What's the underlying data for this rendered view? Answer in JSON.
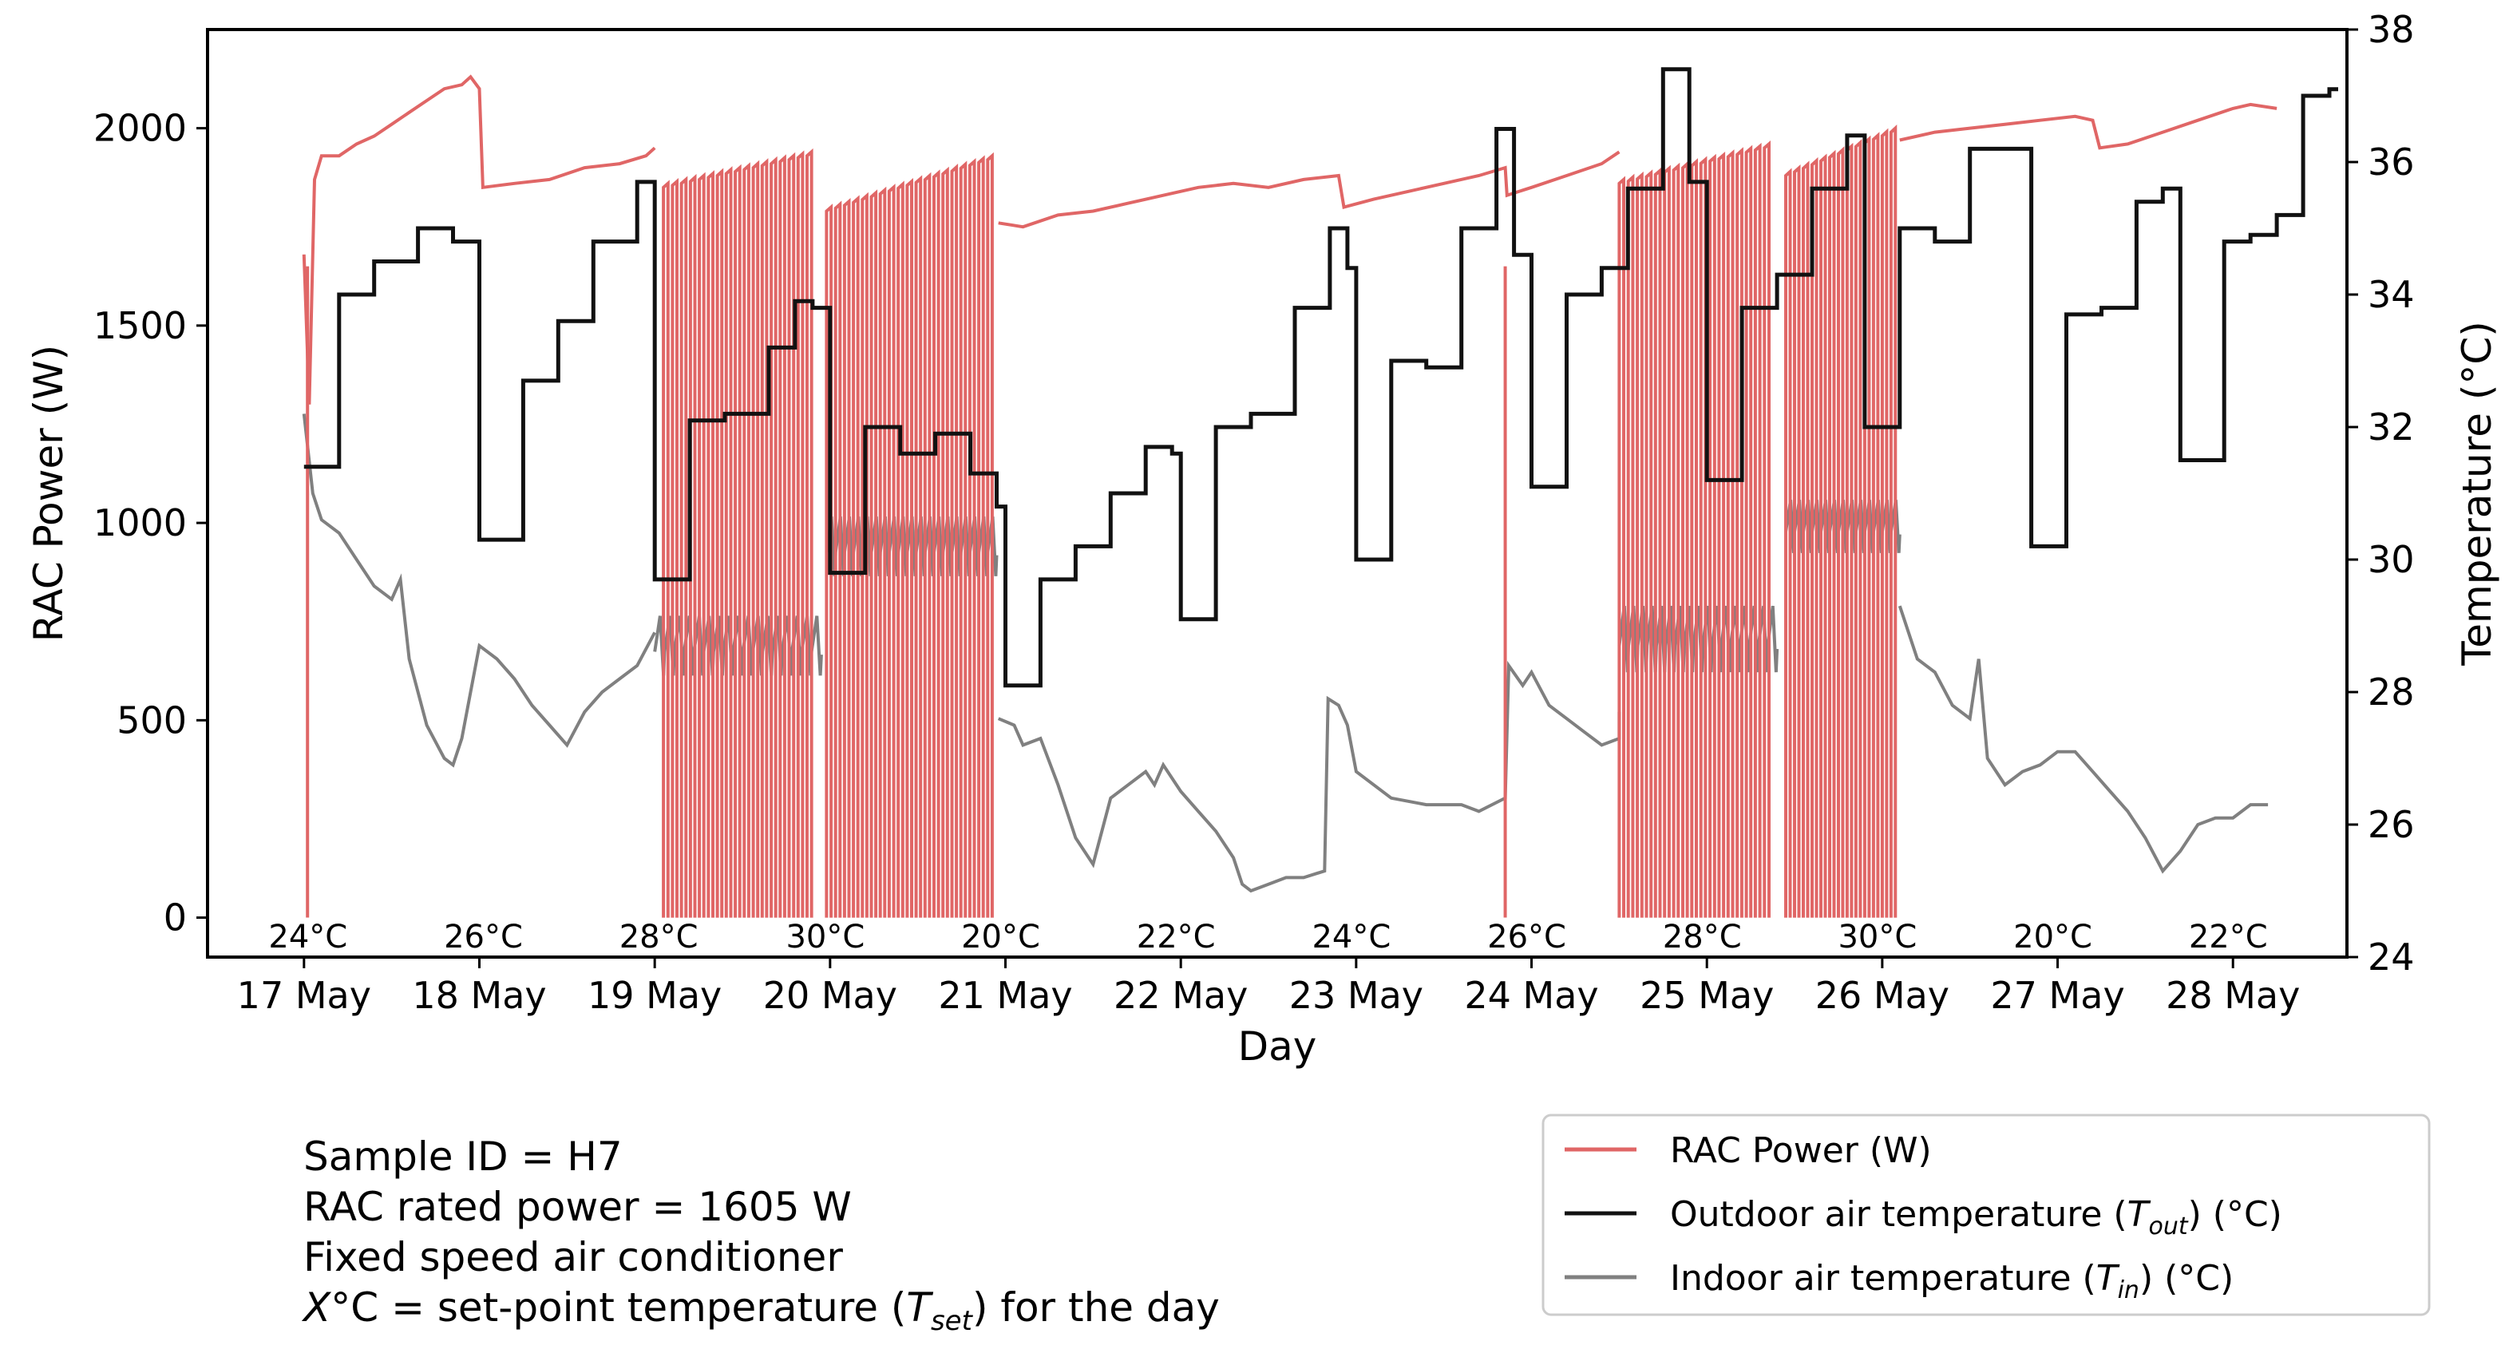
{
  "chart_data": {
    "type": "line",
    "xlabel": "Day",
    "ylabel_left": "RAC Power (W)",
    "ylabel_right": "Temperature (°C)",
    "ylim_left": [
      -100,
      2250
    ],
    "ylim_right": [
      24,
      38
    ],
    "xlim": [
      16.45,
      28.65
    ],
    "x_ticks": [
      {
        "value": 17,
        "label": "17 May"
      },
      {
        "value": 18,
        "label": "18 May"
      },
      {
        "value": 19,
        "label": "19 May"
      },
      {
        "value": 20,
        "label": "20 May"
      },
      {
        "value": 21,
        "label": "21 May"
      },
      {
        "value": 22,
        "label": "22 May"
      },
      {
        "value": 23,
        "label": "23 May"
      },
      {
        "value": 24,
        "label": "24 May"
      },
      {
        "value": 25,
        "label": "25 May"
      },
      {
        "value": 26,
        "label": "26 May"
      },
      {
        "value": 27,
        "label": "27 May"
      },
      {
        "value": 28,
        "label": "28 May"
      }
    ],
    "y_ticks_left": [
      0,
      500,
      1000,
      1500,
      2000
    ],
    "y_ticks_right": [
      24,
      26,
      28,
      30,
      32,
      34,
      36,
      38
    ],
    "setpoints": [
      {
        "x": 17.0,
        "label": "24°C"
      },
      {
        "x": 18.0,
        "label": "26°C"
      },
      {
        "x": 19.0,
        "label": "28°C"
      },
      {
        "x": 19.95,
        "label": "30°C"
      },
      {
        "x": 20.95,
        "label": "20°C"
      },
      {
        "x": 21.95,
        "label": "22°C"
      },
      {
        "x": 22.95,
        "label": "24°C"
      },
      {
        "x": 23.95,
        "label": "26°C"
      },
      {
        "x": 24.95,
        "label": "28°C"
      },
      {
        "x": 25.95,
        "label": "30°C"
      },
      {
        "x": 26.95,
        "label": "20°C"
      },
      {
        "x": 27.95,
        "label": "22°C"
      }
    ],
    "series": [
      {
        "name": "RAC Power (W)",
        "axis": "left",
        "color": "#e06666",
        "continuous": [
          [
            17.0,
            1680
          ],
          [
            17.03,
            1300
          ],
          [
            17.06,
            1870
          ],
          [
            17.1,
            1930
          ],
          [
            17.2,
            1930
          ],
          [
            17.3,
            1960
          ],
          [
            17.4,
            1980
          ],
          [
            17.5,
            2010
          ],
          [
            17.6,
            2040
          ],
          [
            17.7,
            2070
          ],
          [
            17.8,
            2100
          ],
          [
            17.9,
            2110
          ],
          [
            17.95,
            2130
          ],
          [
            18.0,
            2100
          ],
          [
            18.02,
            1850
          ],
          [
            18.2,
            1860
          ],
          [
            18.4,
            1870
          ],
          [
            18.6,
            1900
          ],
          [
            18.8,
            1910
          ],
          [
            18.95,
            1930
          ],
          [
            19.0,
            1950
          ],
          [
            20.96,
            1760
          ],
          [
            21.1,
            1750
          ],
          [
            21.3,
            1780
          ],
          [
            21.5,
            1790
          ],
          [
            21.7,
            1810
          ],
          [
            21.9,
            1830
          ],
          [
            22.1,
            1850
          ],
          [
            22.3,
            1860
          ],
          [
            22.5,
            1850
          ],
          [
            22.7,
            1870
          ],
          [
            22.9,
            1880
          ],
          [
            22.93,
            1800
          ],
          [
            23.1,
            1820
          ],
          [
            23.3,
            1840
          ],
          [
            23.5,
            1860
          ],
          [
            23.7,
            1880
          ],
          [
            23.85,
            1900
          ],
          [
            23.86,
            1830
          ],
          [
            24.0,
            1850
          ],
          [
            24.2,
            1880
          ],
          [
            24.4,
            1910
          ],
          [
            24.5,
            1940
          ],
          [
            26.1,
            1970
          ],
          [
            26.3,
            1990
          ],
          [
            26.5,
            2000
          ],
          [
            26.7,
            2010
          ],
          [
            26.9,
            2020
          ],
          [
            27.1,
            2030
          ],
          [
            27.2,
            2020
          ],
          [
            27.24,
            1950
          ],
          [
            27.4,
            1960
          ],
          [
            27.6,
            1990
          ],
          [
            27.8,
            2020
          ],
          [
            28.0,
            2050
          ],
          [
            28.1,
            2060
          ],
          [
            28.25,
            2050
          ]
        ],
        "cycling_blocks": [
          {
            "start": 19.05,
            "end": 19.92,
            "peak_start": 1850,
            "peak_end": 1930,
            "count": 17
          },
          {
            "start": 19.98,
            "end": 20.95,
            "peak_start": 1790,
            "peak_end": 1920,
            "count": 19
          },
          {
            "start": 24.5,
            "end": 25.38,
            "peak_start": 1860,
            "peak_end": 1950,
            "count": 17
          },
          {
            "start": 25.45,
            "end": 26.1,
            "peak_start": 1880,
            "peak_end": 1990,
            "count": 13
          }
        ],
        "drop_spikes": [
          17.02,
          23.85
        ]
      },
      {
        "name": "Outdoor air temperature (T_out) (°C)",
        "axis": "right",
        "color": "#111111",
        "steps": [
          [
            17.0,
            31.4
          ],
          [
            17.2,
            34.0
          ],
          [
            17.4,
            34.5
          ],
          [
            17.65,
            35.0
          ],
          [
            17.85,
            34.8
          ],
          [
            18.0,
            30.3
          ],
          [
            18.25,
            32.7
          ],
          [
            18.45,
            33.6
          ],
          [
            18.65,
            34.8
          ],
          [
            18.9,
            35.7
          ],
          [
            19.0,
            29.7
          ],
          [
            19.2,
            32.1
          ],
          [
            19.4,
            32.2
          ],
          [
            19.65,
            33.2
          ],
          [
            19.8,
            33.9
          ],
          [
            19.9,
            33.8
          ],
          [
            20.0,
            29.8
          ],
          [
            20.2,
            32.0
          ],
          [
            20.4,
            31.6
          ],
          [
            20.6,
            31.9
          ],
          [
            20.8,
            31.3
          ],
          [
            20.95,
            30.8
          ],
          [
            21.0,
            28.1
          ],
          [
            21.2,
            29.7
          ],
          [
            21.4,
            30.2
          ],
          [
            21.6,
            31.0
          ],
          [
            21.8,
            31.7
          ],
          [
            21.95,
            31.6
          ],
          [
            22.0,
            29.1
          ],
          [
            22.2,
            32.0
          ],
          [
            22.4,
            32.2
          ],
          [
            22.65,
            33.8
          ],
          [
            22.85,
            35.0
          ],
          [
            22.95,
            34.4
          ],
          [
            23.0,
            30.0
          ],
          [
            23.2,
            33.0
          ],
          [
            23.4,
            32.9
          ],
          [
            23.6,
            35.0
          ],
          [
            23.8,
            36.5
          ],
          [
            23.9,
            34.6
          ],
          [
            24.0,
            31.1
          ],
          [
            24.2,
            34.0
          ],
          [
            24.4,
            34.4
          ],
          [
            24.55,
            35.6
          ],
          [
            24.75,
            37.4
          ],
          [
            24.9,
            35.7
          ],
          [
            25.0,
            31.2
          ],
          [
            25.2,
            33.8
          ],
          [
            25.4,
            34.3
          ],
          [
            25.6,
            35.6
          ],
          [
            25.8,
            36.4
          ],
          [
            25.9,
            32.0
          ],
          [
            26.1,
            35.0
          ],
          [
            26.3,
            34.8
          ],
          [
            26.5,
            36.2
          ],
          [
            26.7,
            36.2
          ],
          [
            26.85,
            30.2
          ],
          [
            27.05,
            33.7
          ],
          [
            27.25,
            33.8
          ],
          [
            27.45,
            35.4
          ],
          [
            27.6,
            35.6
          ],
          [
            27.7,
            31.5
          ],
          [
            27.95,
            34.8
          ],
          [
            28.1,
            34.9
          ],
          [
            28.25,
            35.2
          ],
          [
            28.4,
            37.0
          ],
          [
            28.55,
            37.1
          ]
        ],
        "x_end": 28.6
      },
      {
        "name": "Indoor air temperature (T_in) (°C)",
        "axis": "right",
        "color": "#808080",
        "continuous": [
          [
            17.0,
            32.2
          ],
          [
            17.05,
            31.0
          ],
          [
            17.1,
            30.6
          ],
          [
            17.2,
            30.4
          ],
          [
            17.3,
            30.0
          ],
          [
            17.4,
            29.6
          ],
          [
            17.5,
            29.4
          ],
          [
            17.55,
            29.7
          ],
          [
            17.6,
            28.5
          ],
          [
            17.65,
            28.0
          ],
          [
            17.7,
            27.5
          ],
          [
            17.8,
            27.0
          ],
          [
            17.85,
            26.9
          ],
          [
            17.9,
            27.3
          ],
          [
            18.0,
            28.7
          ],
          [
            18.1,
            28.5
          ],
          [
            18.2,
            28.2
          ],
          [
            18.3,
            27.8
          ],
          [
            18.4,
            27.5
          ],
          [
            18.5,
            27.2
          ],
          [
            18.6,
            27.7
          ],
          [
            18.7,
            28.0
          ],
          [
            18.8,
            28.2
          ],
          [
            18.9,
            28.4
          ],
          [
            19.0,
            28.9
          ],
          [
            20.96,
            27.6
          ],
          [
            21.05,
            27.5
          ],
          [
            21.1,
            27.2
          ],
          [
            21.2,
            27.3
          ],
          [
            21.3,
            26.6
          ],
          [
            21.4,
            25.8
          ],
          [
            21.5,
            25.4
          ],
          [
            21.55,
            25.9
          ],
          [
            21.6,
            26.4
          ],
          [
            21.7,
            26.6
          ],
          [
            21.8,
            26.8
          ],
          [
            21.85,
            26.6
          ],
          [
            21.9,
            26.9
          ],
          [
            22.0,
            26.5
          ],
          [
            22.1,
            26.2
          ],
          [
            22.2,
            25.9
          ],
          [
            22.3,
            25.5
          ],
          [
            22.35,
            25.1
          ],
          [
            22.4,
            25.0
          ],
          [
            22.5,
            25.1
          ],
          [
            22.6,
            25.2
          ],
          [
            22.7,
            25.2
          ],
          [
            22.82,
            25.3
          ],
          [
            22.84,
            27.9
          ],
          [
            22.9,
            27.8
          ],
          [
            22.95,
            27.5
          ],
          [
            23.0,
            26.8
          ],
          [
            23.2,
            26.4
          ],
          [
            23.4,
            26.3
          ],
          [
            23.6,
            26.3
          ],
          [
            23.7,
            26.2
          ],
          [
            23.85,
            26.4
          ],
          [
            23.87,
            28.4
          ],
          [
            23.95,
            28.1
          ],
          [
            24.0,
            28.3
          ],
          [
            24.1,
            27.8
          ],
          [
            24.2,
            27.6
          ],
          [
            24.3,
            27.4
          ],
          [
            24.4,
            27.2
          ],
          [
            24.5,
            27.3
          ],
          [
            24.5,
            27.7
          ],
          [
            26.1,
            29.3
          ],
          [
            26.2,
            28.5
          ],
          [
            26.3,
            28.3
          ],
          [
            26.4,
            27.8
          ],
          [
            26.5,
            27.6
          ],
          [
            26.55,
            28.5
          ],
          [
            26.6,
            27.0
          ],
          [
            26.7,
            26.6
          ],
          [
            26.8,
            26.8
          ],
          [
            26.9,
            26.9
          ],
          [
            27.0,
            27.1
          ],
          [
            27.1,
            27.1
          ],
          [
            27.2,
            26.8
          ],
          [
            27.3,
            26.5
          ],
          [
            27.4,
            26.2
          ],
          [
            27.5,
            25.8
          ],
          [
            27.6,
            25.3
          ],
          [
            27.7,
            25.6
          ],
          [
            27.8,
            26.0
          ],
          [
            27.9,
            26.1
          ],
          [
            28.0,
            26.1
          ],
          [
            28.1,
            26.3
          ],
          [
            28.2,
            26.3
          ]
        ],
        "cycling_blocks": [
          {
            "start": 19.0,
            "end": 19.95,
            "base": 28.7,
            "amp": 0.45,
            "count": 17
          },
          {
            "start": 19.98,
            "end": 20.95,
            "base": 30.2,
            "amp": 0.45,
            "count": 19
          },
          {
            "start": 24.5,
            "end": 25.4,
            "base": 28.8,
            "amp": 0.5,
            "count": 17
          },
          {
            "start": 25.45,
            "end": 26.1,
            "base": 30.5,
            "amp": 0.4,
            "count": 13
          }
        ]
      }
    ],
    "legend": {
      "position": "bottom-right",
      "entries": [
        {
          "label": "RAC Power (W)",
          "color": "#e06666"
        },
        {
          "label": "Outdoor air temperature (",
          "var": "T",
          "sub": "out",
          "tail": ") (°C)",
          "color": "#111111"
        },
        {
          "label": "Indoor air temperature (",
          "var": "T",
          "sub": "in",
          "tail": ") (°C)",
          "color": "#808080"
        }
      ]
    }
  },
  "info": {
    "line1": "Sample ID = H7",
    "line2": "RAC rated power = 1605 W",
    "line3": "Fixed speed air conditioner",
    "line4_var": "X",
    "line4_mid": "°C = set-point temperature (",
    "line4_T": "T",
    "line4_sub": "set",
    "line4_tail": ") for the day"
  }
}
